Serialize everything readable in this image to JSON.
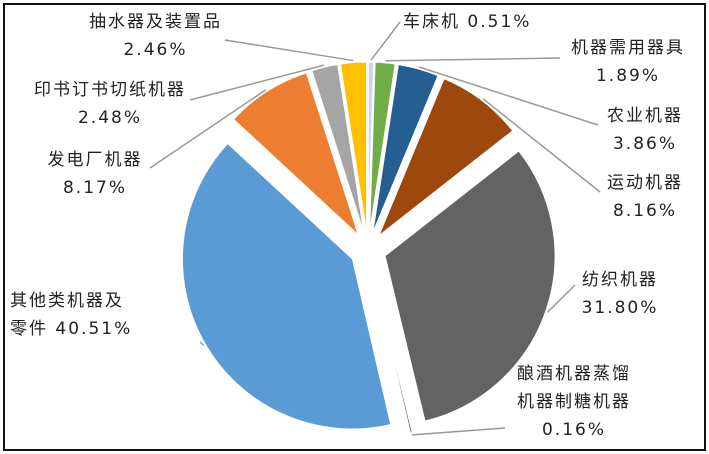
{
  "chart_data": {
    "type": "pie",
    "categories": [
      "车床机",
      "机器需用器具",
      "农业机器",
      "运动机器",
      "纺织机器",
      "酿酒机器蒸馏机器制糖机器",
      "其他类机器及零件",
      "发电厂机器",
      "印书订书切纸机器",
      "抽水器及装置品"
    ],
    "values": [
      0.51,
      1.89,
      3.86,
      8.16,
      31.8,
      0.16,
      40.51,
      8.17,
      2.48,
      2.46
    ],
    "value_labels": [
      "0.51%",
      "1.89%",
      "3.86%",
      "8.16%",
      "31.80%",
      "0.16%",
      "40.51%",
      "8.17%",
      "2.48%",
      "2.46%"
    ],
    "colors": [
      "#c9d9ec",
      "#70ad47",
      "#255e91",
      "#9e480e",
      "#636363",
      "#264478",
      "#5b9bd5",
      "#ed7d31",
      "#a5a5a5",
      "#ffc000"
    ]
  }
}
